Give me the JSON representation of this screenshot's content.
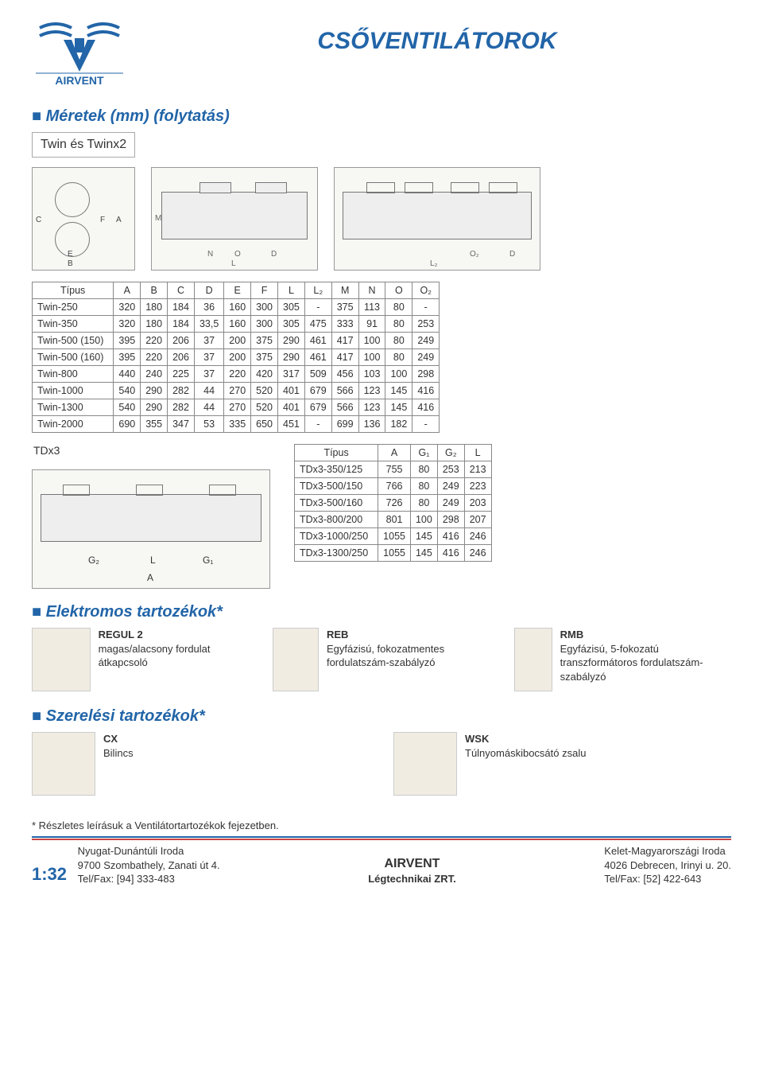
{
  "page": {
    "main_title": "CSŐVENTILÁTOROK",
    "section1": "Méretek (mm) (folytatás)",
    "sub1": "Twin és Twinx2",
    "section2": "Elektromos tartozékok*",
    "section3": "Szerelési tartozékok*",
    "footnote": "* Részletes leírásuk a Ventilátortartozékok fejezetben.",
    "page_number": "1:32"
  },
  "logo": {
    "brand": "AIRVENT",
    "color": "#2265a8"
  },
  "twin_diagram_labels": {
    "C": "C",
    "F": "F",
    "A": "A",
    "M": "M",
    "E": "E",
    "B": "B",
    "N": "N",
    "O": "O",
    "D": "D",
    "L": "L",
    "O2": "O₂",
    "L2": "L₂"
  },
  "twin_table": {
    "headers": [
      "Típus",
      "A",
      "B",
      "C",
      "D",
      "E",
      "F",
      "L",
      "L₂",
      "M",
      "N",
      "O",
      "O₂"
    ],
    "rows": [
      [
        "Twin-250",
        "320",
        "180",
        "184",
        "36",
        "160",
        "300",
        "305",
        "-",
        "375",
        "113",
        "80",
        "-"
      ],
      [
        "Twin-350",
        "320",
        "180",
        "184",
        "33,5",
        "160",
        "300",
        "305",
        "475",
        "333",
        "91",
        "80",
        "253"
      ],
      [
        "Twin-500 (150)",
        "395",
        "220",
        "206",
        "37",
        "200",
        "375",
        "290",
        "461",
        "417",
        "100",
        "80",
        "249"
      ],
      [
        "Twin-500 (160)",
        "395",
        "220",
        "206",
        "37",
        "200",
        "375",
        "290",
        "461",
        "417",
        "100",
        "80",
        "249"
      ],
      [
        "Twin-800",
        "440",
        "240",
        "225",
        "37",
        "220",
        "420",
        "317",
        "509",
        "456",
        "103",
        "100",
        "298"
      ],
      [
        "Twin-1000",
        "540",
        "290",
        "282",
        "44",
        "270",
        "520",
        "401",
        "679",
        "566",
        "123",
        "145",
        "416"
      ],
      [
        "Twin-1300",
        "540",
        "290",
        "282",
        "44",
        "270",
        "520",
        "401",
        "679",
        "566",
        "123",
        "145",
        "416"
      ],
      [
        "Twin-2000",
        "690",
        "355",
        "347",
        "53",
        "335",
        "650",
        "451",
        "-",
        "699",
        "136",
        "182",
        "-"
      ]
    ]
  },
  "tdx_label": "TDx3",
  "tdx_diagram_labels": {
    "G2": "G₂",
    "L": "L",
    "G1": "G₁",
    "A": "A"
  },
  "tdx_table": {
    "headers": [
      "Típus",
      "A",
      "G₁",
      "G₂",
      "L"
    ],
    "rows": [
      [
        "TDx3-350/125",
        "755",
        "80",
        "253",
        "213"
      ],
      [
        "TDx3-500/150",
        "766",
        "80",
        "249",
        "223"
      ],
      [
        "TDx3-500/160",
        "726",
        "80",
        "249",
        "203"
      ],
      [
        "TDx3-800/200",
        "801",
        "100",
        "298",
        "207"
      ],
      [
        "TDx3-1000/250",
        "1055",
        "145",
        "416",
        "246"
      ],
      [
        "TDx3-1300/250",
        "1055",
        "145",
        "416",
        "246"
      ]
    ]
  },
  "accessories_electric": [
    {
      "name": "REGUL 2",
      "desc": "magas/alacsony fordulat átkapcsoló"
    },
    {
      "name": "REB",
      "desc": "Egyfázisú, fokozatmentes fordulatszám-szabályzó"
    },
    {
      "name": "RMB",
      "desc": "Egyfázisú, 5-fokozatú transzformátoros fordulatszám-szabályzó"
    }
  ],
  "accessories_mount": [
    {
      "name": "CX",
      "desc": "Bilincs"
    },
    {
      "name": "WSK",
      "desc": "Túlnyomáskibocsátó zsalu"
    }
  ],
  "footer": {
    "left": {
      "title": "Nyugat-Dunántúli Iroda",
      "addr": "9700 Szombathely, Zanati út 4.",
      "tel": "Tel/Fax: [94] 333-483"
    },
    "center": {
      "co": "AIRVENT",
      "sub": "Légtechnikai ZRT."
    },
    "right": {
      "title": "Kelet-Magyarországi Iroda",
      "addr": "4026 Debrecen, Irinyi u. 20.",
      "tel": "Tel/Fax: [52] 422-643"
    }
  },
  "colors": {
    "accent": "#2265a8",
    "rule_red": "#c44"
  }
}
